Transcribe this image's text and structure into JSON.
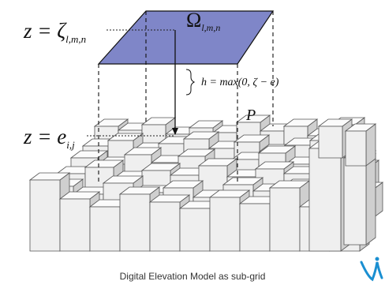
{
  "labels": {
    "z_top_lhs": "z = ",
    "zeta": "ζ",
    "zeta_sub": "l,m,n",
    "omega": "Ω",
    "omega_sub": "l,m,n",
    "z_bottom_lhs": "z = ",
    "e": "e",
    "e_sub": "i,j",
    "h_formula": "h = max(0, ζ − e)",
    "point": "P",
    "caption": "Digital Elevation Model as sub-grid"
  },
  "colors": {
    "plane_fill": "#7f86c8",
    "plane_stroke": "#111111",
    "block_face": "#efefef",
    "block_top": "#fbfbfb",
    "block_side": "#cfcfcf",
    "block_stroke": "#555555",
    "logo": "#1a8fd1"
  }
}
